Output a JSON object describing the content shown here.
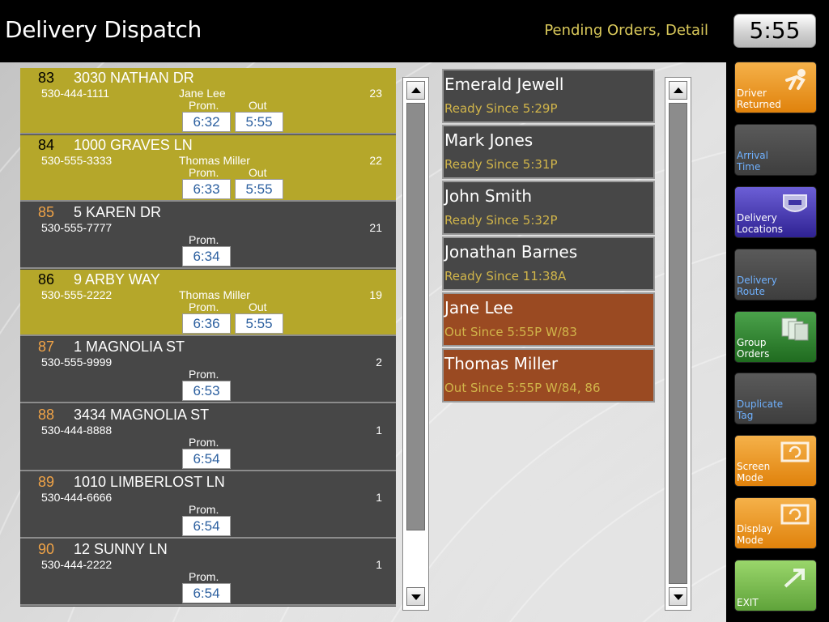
{
  "header": {
    "title": "Delivery Dispatch",
    "view": "Pending Orders, Detail",
    "clock": "5:55"
  },
  "orders": [
    {
      "num": "83",
      "address": "3030 NATHAN DR",
      "phone": "530-444-1111",
      "driver": "Jane Lee",
      "count": "23",
      "prom_label": "Prom.",
      "prom": "6:32",
      "out_label": "Out",
      "out": "5:55",
      "status": "out"
    },
    {
      "num": "84",
      "address": "1000 GRAVES LN",
      "phone": "530-555-3333",
      "driver": "Thomas Miller",
      "count": "22",
      "prom_label": "Prom.",
      "prom": "6:33",
      "out_label": "Out",
      "out": "5:55",
      "status": "out"
    },
    {
      "num": "85",
      "address": "5 KAREN DR",
      "phone": "530-555-7777",
      "driver": "",
      "count": "21",
      "prom_label": "Prom.",
      "prom": "6:34",
      "out_label": "",
      "out": "",
      "status": "pending"
    },
    {
      "num": "86",
      "address": "9 ARBY WAY",
      "phone": "530-555-2222",
      "driver": "Thomas Miller",
      "count": "19",
      "prom_label": "Prom.",
      "prom": "6:36",
      "out_label": "Out",
      "out": "5:55",
      "status": "out"
    },
    {
      "num": "87",
      "address": "1 MAGNOLIA ST",
      "phone": "530-555-9999",
      "driver": "",
      "count": "2",
      "prom_label": "Prom.",
      "prom": "6:53",
      "out_label": "",
      "out": "",
      "status": "pending"
    },
    {
      "num": "88",
      "address": "3434 MAGNOLIA ST",
      "phone": "530-444-8888",
      "driver": "",
      "count": "1",
      "prom_label": "Prom.",
      "prom": "6:54",
      "out_label": "",
      "out": "",
      "status": "pending"
    },
    {
      "num": "89",
      "address": "1010 LIMBERLOST LN",
      "phone": "530-444-6666",
      "driver": "",
      "count": "1",
      "prom_label": "Prom.",
      "prom": "6:54",
      "out_label": "",
      "out": "",
      "status": "pending"
    },
    {
      "num": "90",
      "address": "12 SUNNY LN",
      "phone": "530-444-2222",
      "driver": "",
      "count": "1",
      "prom_label": "Prom.",
      "prom": "6:54",
      "out_label": "",
      "out": "",
      "status": "pending"
    }
  ],
  "drivers": [
    {
      "name": "Emerald Jewell",
      "status": "Ready Since  5:29P",
      "state": "ready"
    },
    {
      "name": "Mark Jones",
      "status": "Ready Since  5:31P",
      "state": "ready"
    },
    {
      "name": "John Smith",
      "status": "Ready Since  5:32P",
      "state": "ready"
    },
    {
      "name": "Jonathan Barnes",
      "status": "Ready Since 11:38A",
      "state": "ready"
    },
    {
      "name": "Jane Lee",
      "status": "Out Since  5:55P W/83",
      "state": "out"
    },
    {
      "name": "Thomas Miller",
      "status": "Out Since  5:55P W/84, 86",
      "state": "out"
    }
  ],
  "side_buttons": [
    {
      "label": "Driver\nReturned",
      "style": "orange",
      "icon": "runner-icon",
      "enabled": true
    },
    {
      "label": "Arrival\nTime",
      "style": "disabled",
      "icon": "",
      "enabled": false
    },
    {
      "label": "Delivery\nLocations",
      "style": "purple",
      "icon": "highway-sign-icon",
      "enabled": true
    },
    {
      "label": "Delivery\nRoute",
      "style": "disabled",
      "icon": "",
      "enabled": false
    },
    {
      "label": "Group\nOrders",
      "style": "green",
      "icon": "documents-icon",
      "enabled": true
    },
    {
      "label": "Duplicate\nTag",
      "style": "disabled",
      "icon": "",
      "enabled": false
    },
    {
      "label": "Screen\nMode",
      "style": "orange",
      "icon": "monitor-refresh-icon",
      "enabled": true
    },
    {
      "label": "Display\nMode",
      "style": "orange",
      "icon": "monitor-refresh-icon",
      "enabled": true
    },
    {
      "label": "EXIT",
      "style": "lime",
      "icon": "exit-arrow-icon",
      "enabled": true
    }
  ],
  "colors": {
    "order_out_bg": "#b5a72a",
    "order_pending_bg": "#474747",
    "driver_out_bg": "#9a4a22",
    "status_text": "#d1b54a",
    "order_num_pending": "#f0a347",
    "prom_text": "#2b5f9f"
  }
}
